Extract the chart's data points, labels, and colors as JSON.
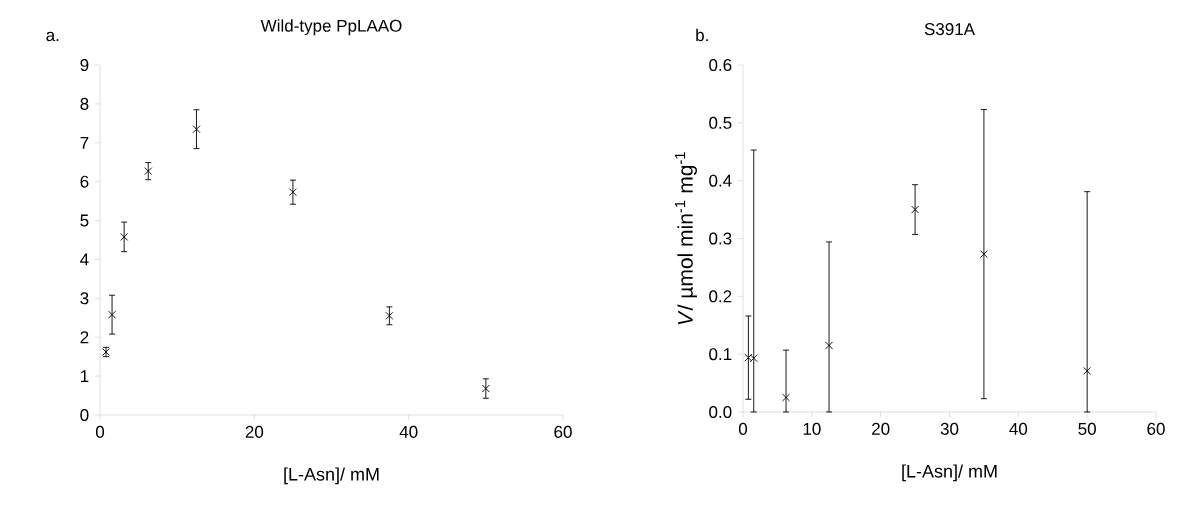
{
  "chart_data": [
    {
      "type": "scatter",
      "title": "Wild-type PpLAAO",
      "xlabel": "[L-Asn]/ mM",
      "annotations": [
        "a."
      ],
      "marker": "cross",
      "grid": false,
      "xlim": [
        0,
        60
      ],
      "xticks": [
        0,
        20,
        40,
        60
      ],
      "ylim": [
        0,
        9
      ],
      "yticks": [
        0,
        1,
        2,
        3,
        4,
        5,
        6,
        7,
        8,
        9
      ],
      "series": [
        {
          "color": "#000000",
          "x": [
            0.78,
            1.56,
            3.125,
            6.25,
            12.5,
            25,
            37.5,
            50
          ],
          "values": [
            1.62,
            2.58,
            4.58,
            6.27,
            7.35,
            5.73,
            2.55,
            0.68
          ],
          "errors": [
            0.12,
            0.5,
            0.38,
            0.22,
            0.5,
            0.31,
            0.23,
            0.25
          ]
        }
      ]
    },
    {
      "type": "scatter",
      "title": "S391A",
      "xlabel": "[L-Asn]/ mM",
      "ylabel": "*V*/ µmol min$^{-1}$ mg$^{-1}$",
      "annotations": [
        "b."
      ],
      "marker": "cross",
      "grid": false,
      "xlim": [
        0,
        60
      ],
      "xticks": [
        0,
        10,
        20,
        30,
        40,
        50,
        60
      ],
      "ylim": [
        0,
        0.6
      ],
      "yticks": [
        {
          "value": 0,
          "label": "0.0"
        },
        {
          "value": 0.1,
          "label": "0.1"
        },
        {
          "value": 0.2,
          "label": "0.2"
        },
        {
          "value": 0.3,
          "label": "0.3"
        },
        {
          "value": 0.4,
          "label": "0.4"
        },
        {
          "value": 0.5,
          "label": "0.5"
        },
        {
          "value": 0.6,
          "label": "0.6"
        }
      ],
      "series": [
        {
          "color": "#000000",
          "x": [
            0.78,
            1.56,
            6.25,
            12.5,
            25,
            35,
            50
          ],
          "values": [
            0.094,
            0.093,
            0.025,
            0.115,
            0.35,
            0.273,
            0.071
          ],
          "errors": [
            0.072,
            [
              0,
              0.453
            ],
            [
              0,
              0.107
            ],
            [
              0,
              0.294
            ],
            0.043,
            0.25,
            [
              0,
              0.381
            ]
          ]
        }
      ]
    }
  ]
}
